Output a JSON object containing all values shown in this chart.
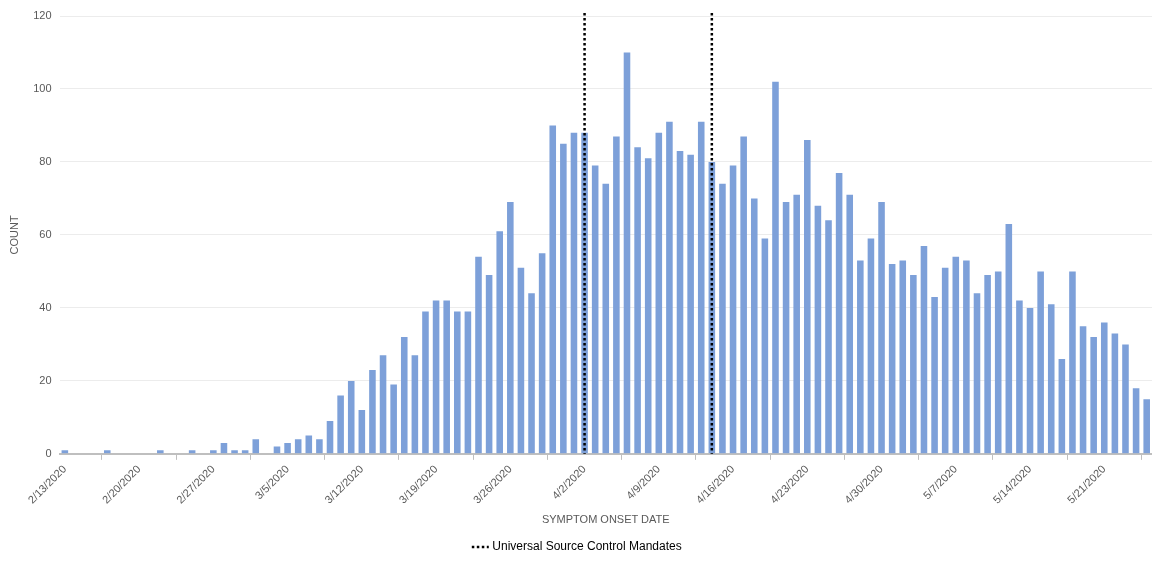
{
  "chart_data": {
    "type": "bar",
    "xlabel": "SYMPTOM ONSET DATE",
    "ylabel": "COUNT",
    "x": [
      "2020-02-13",
      "2020-02-14",
      "2020-02-15",
      "2020-02-16",
      "2020-02-17",
      "2020-02-18",
      "2020-02-19",
      "2020-02-20",
      "2020-02-21",
      "2020-02-22",
      "2020-02-23",
      "2020-02-24",
      "2020-02-25",
      "2020-02-26",
      "2020-02-27",
      "2020-02-28",
      "2020-02-29",
      "2020-03-01",
      "2020-03-02",
      "2020-03-03",
      "2020-03-04",
      "2020-03-05",
      "2020-03-06",
      "2020-03-07",
      "2020-03-08",
      "2020-03-09",
      "2020-03-10",
      "2020-03-11",
      "2020-03-12",
      "2020-03-13",
      "2020-03-14",
      "2020-03-15",
      "2020-03-16",
      "2020-03-17",
      "2020-03-18",
      "2020-03-19",
      "2020-03-20",
      "2020-03-21",
      "2020-03-22",
      "2020-03-23",
      "2020-03-24",
      "2020-03-25",
      "2020-03-26",
      "2020-03-27",
      "2020-03-28",
      "2020-03-29",
      "2020-03-30",
      "2020-03-31",
      "2020-04-01",
      "2020-04-02",
      "2020-04-03",
      "2020-04-04",
      "2020-04-05",
      "2020-04-06",
      "2020-04-07",
      "2020-04-08",
      "2020-04-09",
      "2020-04-10",
      "2020-04-11",
      "2020-04-12",
      "2020-04-13",
      "2020-04-14",
      "2020-04-15",
      "2020-04-16",
      "2020-04-17",
      "2020-04-18",
      "2020-04-19",
      "2020-04-20",
      "2020-04-21",
      "2020-04-22",
      "2020-04-23",
      "2020-04-24",
      "2020-04-25",
      "2020-04-26",
      "2020-04-27",
      "2020-04-28",
      "2020-04-29",
      "2020-04-30",
      "2020-05-01",
      "2020-05-02",
      "2020-05-03",
      "2020-05-04",
      "2020-05-05",
      "2020-05-06",
      "2020-05-07",
      "2020-05-08",
      "2020-05-09",
      "2020-05-10",
      "2020-05-11",
      "2020-05-12",
      "2020-05-13",
      "2020-05-14",
      "2020-05-15",
      "2020-05-16",
      "2020-05-17",
      "2020-05-18",
      "2020-05-19",
      "2020-05-20",
      "2020-05-21",
      "2020-05-22",
      "2020-05-23",
      "2020-05-24",
      "2020-05-25"
    ],
    "values": [
      1,
      0,
      0,
      0,
      1,
      0,
      0,
      0,
      0,
      1,
      0,
      0,
      1,
      0,
      1,
      3,
      1,
      1,
      4,
      0,
      2,
      3,
      4,
      5,
      4,
      9,
      16,
      20,
      12,
      23,
      27,
      19,
      32,
      27,
      39,
      42,
      42,
      39,
      39,
      54,
      49,
      61,
      69,
      51,
      44,
      55,
      90,
      85,
      88,
      88,
      79,
      74,
      87,
      110,
      84,
      81,
      88,
      91,
      83,
      82,
      91,
      80,
      74,
      79,
      87,
      70,
      59,
      102,
      69,
      71,
      86,
      68,
      64,
      77,
      71,
      53,
      59,
      69,
      52,
      53,
      49,
      57,
      43,
      51,
      54,
      53,
      44,
      49,
      50,
      63,
      42,
      40,
      50,
      41,
      26,
      50,
      35,
      32,
      36,
      33,
      30,
      18,
      15
    ],
    "color": "#7da0d9",
    "xlim": [
      "2020-02-12T12:00",
      "2020-05-25T12:00"
    ],
    "xticks": [
      {
        "value": "2020-02-13",
        "label": "2/13/2020"
      },
      {
        "value": "2020-02-20",
        "label": "2/20/2020"
      },
      {
        "value": "2020-02-27",
        "label": "2/27/2020"
      },
      {
        "value": "2020-03-05",
        "label": "3/5/2020"
      },
      {
        "value": "2020-03-12",
        "label": "3/12/2020"
      },
      {
        "value": "2020-03-19",
        "label": "3/19/2020"
      },
      {
        "value": "2020-03-26",
        "label": "3/26/2020"
      },
      {
        "value": "2020-04-02",
        "label": "4/2/2020"
      },
      {
        "value": "2020-04-09",
        "label": "4/9/2020"
      },
      {
        "value": "2020-04-16",
        "label": "4/16/2020"
      },
      {
        "value": "2020-04-23",
        "label": "4/23/2020"
      },
      {
        "value": "2020-04-30",
        "label": "4/30/2020"
      },
      {
        "value": "2020-05-07",
        "label": "5/7/2020"
      },
      {
        "value": "2020-05-14",
        "label": "5/14/2020"
      },
      {
        "value": "2020-05-21",
        "label": "5/21/2020"
      }
    ],
    "ylim": [
      0,
      120
    ],
    "yticks": [
      0,
      20,
      40,
      60,
      80,
      100,
      120
    ],
    "grid": "y",
    "legend": "bottom",
    "ref_lines": [
      {
        "axis": "x",
        "value": "2020-04-02",
        "label": "Universal Source Control Mandates",
        "color": "#000000",
        "line_style": "dotted"
      },
      {
        "axis": "x",
        "value": "2020-04-14",
        "color": "#000000",
        "line_style": "dotted"
      }
    ]
  }
}
